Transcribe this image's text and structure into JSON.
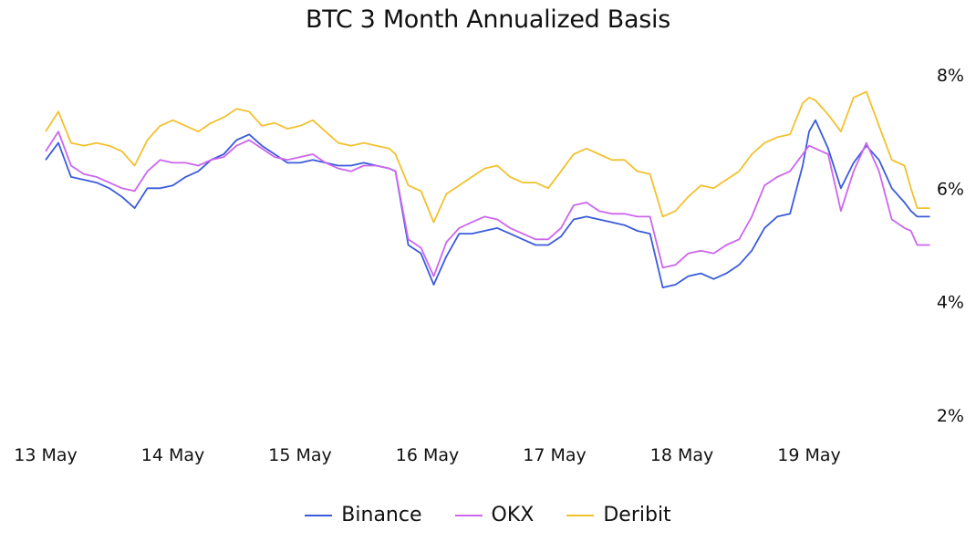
{
  "chart_data": {
    "type": "line",
    "title": "BTC 3 Month Annualized Basis",
    "xlabel": "",
    "ylabel": "",
    "x_tick_labels": [
      "13 May",
      "14 May",
      "15 May",
      "16 May",
      "17 May",
      "18 May",
      "19 May"
    ],
    "y_tick_labels": [
      "2%",
      "4%",
      "6%",
      "8%"
    ],
    "y_ticks": [
      2,
      4,
      6,
      8
    ],
    "ylim": [
      2,
      8
    ],
    "xlim": [
      0,
      7
    ],
    "grid": false,
    "y_axis_position": "right",
    "legend_position": "bottom",
    "series": [
      {
        "name": "Binance",
        "color": "#3b5bdb",
        "x": [
          0,
          0.1,
          0.2,
          0.3,
          0.4,
          0.5,
          0.6,
          0.7,
          0.8,
          0.9,
          1.0,
          1.1,
          1.2,
          1.3,
          1.4,
          1.5,
          1.6,
          1.7,
          1.8,
          1.9,
          2.0,
          2.1,
          2.2,
          2.3,
          2.4,
          2.5,
          2.6,
          2.7,
          2.75,
          2.85,
          2.95,
          3.05,
          3.15,
          3.25,
          3.35,
          3.45,
          3.55,
          3.65,
          3.75,
          3.85,
          3.95,
          4.05,
          4.15,
          4.25,
          4.35,
          4.45,
          4.55,
          4.65,
          4.75,
          4.85,
          4.95,
          5.05,
          5.15,
          5.25,
          5.35,
          5.45,
          5.55,
          5.65,
          5.75,
          5.85,
          5.95,
          6.0,
          6.05,
          6.15,
          6.25,
          6.35,
          6.45,
          6.55,
          6.65,
          6.75,
          6.8,
          6.85,
          6.95
        ],
        "values": [
          6.5,
          6.8,
          6.2,
          6.15,
          6.1,
          6.0,
          5.85,
          5.65,
          6.0,
          6.0,
          6.05,
          6.2,
          6.3,
          6.5,
          6.6,
          6.85,
          6.95,
          6.75,
          6.6,
          6.45,
          6.45,
          6.5,
          6.45,
          6.4,
          6.4,
          6.45,
          6.4,
          6.35,
          6.3,
          5.0,
          4.85,
          4.3,
          4.8,
          5.2,
          5.2,
          5.25,
          5.3,
          5.2,
          5.1,
          5.0,
          5.0,
          5.15,
          5.45,
          5.5,
          5.45,
          5.4,
          5.35,
          5.25,
          5.2,
          4.25,
          4.3,
          4.45,
          4.5,
          4.4,
          4.5,
          4.65,
          4.9,
          5.3,
          5.5,
          5.55,
          6.4,
          7.0,
          7.2,
          6.7,
          6.0,
          6.45,
          6.75,
          6.5,
          6.0,
          5.75,
          5.6,
          5.5,
          5.5
        ]
      },
      {
        "name": "OKX",
        "color": "#cc66ee",
        "x": [
          0,
          0.1,
          0.2,
          0.3,
          0.4,
          0.5,
          0.6,
          0.7,
          0.8,
          0.9,
          1.0,
          1.1,
          1.2,
          1.3,
          1.4,
          1.5,
          1.6,
          1.7,
          1.8,
          1.9,
          2.0,
          2.1,
          2.2,
          2.3,
          2.4,
          2.5,
          2.6,
          2.7,
          2.75,
          2.85,
          2.95,
          3.05,
          3.15,
          3.25,
          3.35,
          3.45,
          3.55,
          3.65,
          3.75,
          3.85,
          3.95,
          4.05,
          4.15,
          4.25,
          4.35,
          4.45,
          4.55,
          4.65,
          4.75,
          4.85,
          4.95,
          5.05,
          5.15,
          5.25,
          5.35,
          5.45,
          5.55,
          5.65,
          5.75,
          5.85,
          5.95,
          6.0,
          6.05,
          6.15,
          6.25,
          6.35,
          6.45,
          6.55,
          6.65,
          6.75,
          6.8,
          6.85,
          6.95
        ],
        "values": [
          6.65,
          7.0,
          6.4,
          6.25,
          6.2,
          6.1,
          6.0,
          5.95,
          6.3,
          6.5,
          6.45,
          6.45,
          6.4,
          6.5,
          6.55,
          6.75,
          6.85,
          6.7,
          6.55,
          6.5,
          6.55,
          6.6,
          6.45,
          6.35,
          6.3,
          6.4,
          6.4,
          6.35,
          6.3,
          5.1,
          4.95,
          4.45,
          5.05,
          5.3,
          5.4,
          5.5,
          5.45,
          5.3,
          5.2,
          5.1,
          5.1,
          5.3,
          5.7,
          5.75,
          5.6,
          5.55,
          5.55,
          5.5,
          5.5,
          4.6,
          4.65,
          4.85,
          4.9,
          4.85,
          5.0,
          5.1,
          5.5,
          6.05,
          6.2,
          6.3,
          6.6,
          6.75,
          6.7,
          6.6,
          5.6,
          6.3,
          6.8,
          6.3,
          5.45,
          5.3,
          5.25,
          5.0,
          5.0
        ]
      },
      {
        "name": "Deribit",
        "color": "#f2c12e",
        "x": [
          0,
          0.1,
          0.2,
          0.3,
          0.4,
          0.5,
          0.6,
          0.7,
          0.8,
          0.9,
          1.0,
          1.1,
          1.2,
          1.3,
          1.4,
          1.5,
          1.6,
          1.7,
          1.8,
          1.9,
          2.0,
          2.1,
          2.2,
          2.3,
          2.4,
          2.5,
          2.6,
          2.7,
          2.75,
          2.85,
          2.95,
          3.05,
          3.15,
          3.25,
          3.35,
          3.45,
          3.55,
          3.65,
          3.75,
          3.85,
          3.95,
          4.05,
          4.15,
          4.25,
          4.35,
          4.45,
          4.55,
          4.65,
          4.75,
          4.85,
          4.95,
          5.05,
          5.15,
          5.25,
          5.35,
          5.45,
          5.55,
          5.65,
          5.75,
          5.85,
          5.95,
          6.0,
          6.05,
          6.15,
          6.25,
          6.35,
          6.45,
          6.55,
          6.65,
          6.75,
          6.8,
          6.85,
          6.95
        ],
        "values": [
          7.0,
          7.35,
          6.8,
          6.75,
          6.8,
          6.75,
          6.65,
          6.4,
          6.85,
          7.1,
          7.2,
          7.1,
          7.0,
          7.15,
          7.25,
          7.4,
          7.35,
          7.1,
          7.15,
          7.05,
          7.1,
          7.2,
          7.0,
          6.8,
          6.75,
          6.8,
          6.75,
          6.7,
          6.6,
          6.05,
          5.95,
          5.4,
          5.9,
          6.05,
          6.2,
          6.35,
          6.4,
          6.2,
          6.1,
          6.1,
          6.0,
          6.3,
          6.6,
          6.7,
          6.6,
          6.5,
          6.5,
          6.3,
          6.25,
          5.5,
          5.6,
          5.85,
          6.05,
          6.0,
          6.15,
          6.3,
          6.6,
          6.8,
          6.9,
          6.95,
          7.5,
          7.6,
          7.55,
          7.3,
          7.0,
          7.6,
          7.7,
          7.1,
          6.5,
          6.4,
          6.0,
          5.65,
          5.65
        ]
      }
    ],
    "legend": [
      "Binance",
      "OKX",
      "Deribit"
    ]
  }
}
